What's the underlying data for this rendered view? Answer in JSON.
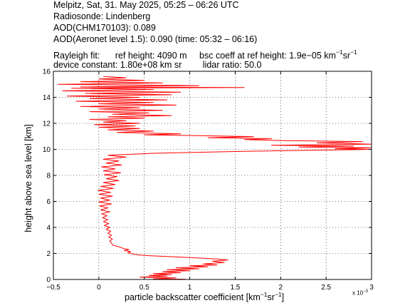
{
  "header": {
    "line1": "Melpitz, Sat, 31. May 2025, 05:25 – 06:26 UTC",
    "line2": "Radiosonde: Lindenberg",
    "line3": "AOD(CHM170103): 0.089",
    "line4": "AOD(Aeronet level 1.5): 0.090   (time: 05:32 – 06:16)",
    "rayleigh_label": "Rayleigh fit:",
    "ref_height": "ref height: 4090 m",
    "bsc_prefix": "bsc coeff at ref height: 1.9e−05 km",
    "bsc_exp1": "−1",
    "bsc_mid": "sr",
    "bsc_exp2": "−1",
    "device_constant": "device constant: 1.80e+08 km sr",
    "lidar_ratio": "lidar ratio: 50.0"
  },
  "chart_data": {
    "type": "line",
    "title": "",
    "xlabel_prefix": "particle backscatter coefficient [km",
    "xlabel_exp1": "−1",
    "xlabel_mid": "sr",
    "xlabel_exp2": "−1",
    "xlabel_suffix": "]",
    "ylabel": "height above sea level [km]",
    "x_scale_prefix": "x 10",
    "x_scale_exp": "−3",
    "xlim": [
      -0.5,
      3
    ],
    "ylim": [
      0,
      16
    ],
    "grid": true,
    "xticks": [
      -0.5,
      0,
      0.5,
      1,
      1.5,
      2,
      2.5,
      3
    ],
    "xtick_labels": [
      "−0.5",
      "0",
      "0.5",
      "1",
      "1.5",
      "2",
      "2.5",
      "3"
    ],
    "yticks": [
      0,
      2,
      4,
      6,
      8,
      10,
      12,
      14,
      16
    ],
    "ytick_labels": [
      "0",
      "2",
      "4",
      "6",
      "8",
      "10",
      "12",
      "14",
      "16"
    ],
    "line_color": "#ff0000",
    "series": [
      {
        "points": [
          [
            0.95,
            0.02
          ],
          [
            0.6,
            0.05
          ],
          [
            0.85,
            0.12
          ],
          [
            0.45,
            0.18
          ],
          [
            0.75,
            0.25
          ],
          [
            0.55,
            0.32
          ],
          [
            0.8,
            0.38
          ],
          [
            0.6,
            0.45
          ],
          [
            0.9,
            0.52
          ],
          [
            0.7,
            0.6
          ],
          [
            1.0,
            0.68
          ],
          [
            0.75,
            0.75
          ],
          [
            1.1,
            0.82
          ],
          [
            0.85,
            0.9
          ],
          [
            1.2,
            0.98
          ],
          [
            1.0,
            1.05
          ],
          [
            1.3,
            1.12
          ],
          [
            1.15,
            1.2
          ],
          [
            1.38,
            1.3
          ],
          [
            1.25,
            1.4
          ],
          [
            1.42,
            1.5
          ],
          [
            1.3,
            1.58
          ],
          [
            1.1,
            1.65
          ],
          [
            0.9,
            1.72
          ],
          [
            0.7,
            1.78
          ],
          [
            0.55,
            1.83
          ],
          [
            0.45,
            1.88
          ],
          [
            0.38,
            1.95
          ],
          [
            0.32,
            2.05
          ],
          [
            0.35,
            2.15
          ],
          [
            0.28,
            2.22
          ],
          [
            0.33,
            2.3
          ],
          [
            0.27,
            2.38
          ],
          [
            0.25,
            2.45
          ],
          [
            0.2,
            2.55
          ],
          [
            0.15,
            2.65
          ],
          [
            0.14,
            2.8
          ],
          [
            0.12,
            2.95
          ],
          [
            0.15,
            3.1
          ],
          [
            0.11,
            3.25
          ],
          [
            0.14,
            3.4
          ],
          [
            0.1,
            3.55
          ],
          [
            0.13,
            3.7
          ],
          [
            0.08,
            3.85
          ],
          [
            0.12,
            4.0
          ],
          [
            0.06,
            4.15
          ],
          [
            0.11,
            4.3
          ],
          [
            0.05,
            4.45
          ],
          [
            0.1,
            4.6
          ],
          [
            0.04,
            4.75
          ],
          [
            0.09,
            4.9
          ],
          [
            0.03,
            5.05
          ],
          [
            0.12,
            5.2
          ],
          [
            0.02,
            5.35
          ],
          [
            0.1,
            5.5
          ],
          [
            0.01,
            5.65
          ],
          [
            0.14,
            5.8
          ],
          [
            0.0,
            5.95
          ],
          [
            0.12,
            6.1
          ],
          [
            0.02,
            6.25
          ],
          [
            0.15,
            6.4
          ],
          [
            0.0,
            6.55
          ],
          [
            0.13,
            6.7
          ],
          [
            -0.01,
            6.85
          ],
          [
            0.16,
            7.0
          ],
          [
            0.02,
            7.15
          ],
          [
            0.18,
            7.3
          ],
          [
            0.05,
            7.45
          ],
          [
            0.22,
            7.6
          ],
          [
            0.08,
            7.75
          ],
          [
            0.2,
            7.9
          ],
          [
            0.06,
            8.05
          ],
          [
            0.24,
            8.2
          ],
          [
            0.05,
            8.35
          ],
          [
            0.18,
            8.5
          ],
          [
            0.03,
            8.65
          ],
          [
            0.25,
            8.8
          ],
          [
            0.08,
            8.95
          ],
          [
            0.22,
            9.1
          ],
          [
            0.05,
            9.25
          ],
          [
            0.3,
            9.4
          ],
          [
            0.1,
            9.55
          ],
          [
            0.6,
            9.7
          ],
          [
            1.6,
            9.85
          ],
          [
            3.0,
            10.0
          ],
          [
            2.6,
            10.05
          ],
          [
            3.0,
            10.12
          ],
          [
            2.2,
            10.18
          ],
          [
            2.8,
            10.25
          ],
          [
            1.9,
            10.32
          ],
          [
            3.0,
            10.4
          ],
          [
            2.4,
            10.5
          ],
          [
            2.9,
            10.6
          ],
          [
            2.0,
            10.68
          ],
          [
            1.6,
            10.75
          ],
          [
            1.9,
            10.82
          ],
          [
            1.2,
            10.9
          ],
          [
            1.7,
            10.98
          ],
          [
            1.1,
            11.05
          ],
          [
            0.5,
            11.12
          ],
          [
            0.9,
            11.2
          ],
          [
            0.2,
            11.3
          ],
          [
            0.6,
            11.4
          ],
          [
            0.1,
            11.5
          ],
          [
            0.45,
            11.6
          ],
          [
            0.0,
            11.7
          ],
          [
            0.4,
            11.8
          ],
          [
            -0.05,
            11.9
          ],
          [
            0.45,
            12.0
          ],
          [
            0.05,
            12.1
          ],
          [
            0.3,
            12.2
          ],
          [
            -0.1,
            12.3
          ],
          [
            0.5,
            12.4
          ],
          [
            0.1,
            12.5
          ],
          [
            0.8,
            12.6
          ],
          [
            0.15,
            12.7
          ],
          [
            0.55,
            12.8
          ],
          [
            -0.1,
            12.9
          ],
          [
            0.7,
            13.0
          ],
          [
            0.0,
            13.1
          ],
          [
            0.45,
            13.2
          ],
          [
            -0.2,
            13.3
          ],
          [
            0.85,
            13.4
          ],
          [
            0.0,
            13.5
          ],
          [
            0.6,
            13.6
          ],
          [
            -0.25,
            13.7
          ],
          [
            0.75,
            13.8
          ],
          [
            -0.1,
            13.9
          ],
          [
            0.45,
            14.0
          ],
          [
            -0.35,
            14.1
          ],
          [
            0.8,
            14.2
          ],
          [
            -0.15,
            14.3
          ],
          [
            0.9,
            14.4
          ],
          [
            -0.4,
            14.5
          ],
          [
            0.6,
            14.6
          ],
          [
            -0.3,
            14.7
          ],
          [
            1.6,
            14.75
          ],
          [
            -0.2,
            14.8
          ],
          [
            1.1,
            14.9
          ],
          [
            -0.45,
            15.0
          ],
          [
            0.7,
            15.1
          ],
          [
            -0.2,
            15.2
          ],
          [
            0.5,
            15.3
          ],
          [
            0.0,
            15.4
          ],
          [
            0.3,
            15.5
          ],
          [
            0.05,
            15.6
          ]
        ]
      }
    ]
  }
}
